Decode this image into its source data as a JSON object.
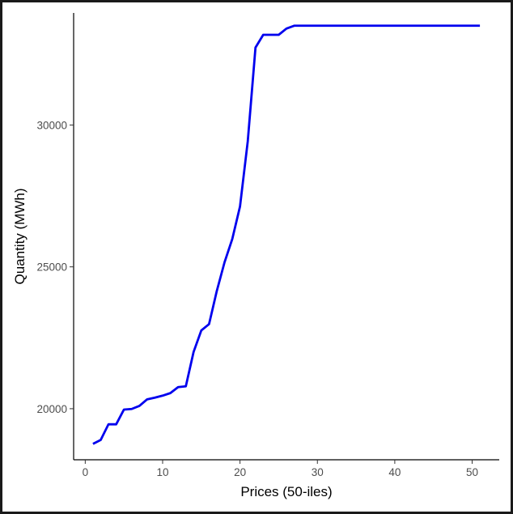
{
  "chart_data": {
    "type": "line",
    "title": "",
    "xlabel": "Prices (50-iles)",
    "ylabel": "Quantity (MWh)",
    "xlim": [
      -1.5,
      53.5
    ],
    "ylim": [
      18200,
      33950
    ],
    "x_ticks": [
      0,
      10,
      20,
      30,
      40,
      50
    ],
    "x_tick_labels": [
      "0",
      "10",
      "20",
      "30",
      "40",
      "50"
    ],
    "y_ticks": [
      20000,
      25000,
      30000
    ],
    "y_tick_labels": [
      "20000",
      "25000",
      "30000"
    ],
    "grid": false,
    "legend": "none",
    "series": [
      {
        "color": "#0000ee",
        "x": [
          1,
          2,
          3,
          4,
          5,
          6,
          7,
          8,
          9,
          10,
          11,
          12,
          13,
          14,
          15,
          16,
          17,
          18,
          19,
          20,
          21,
          22,
          23,
          24,
          25,
          26,
          27,
          28,
          29,
          30,
          31,
          32,
          33,
          34,
          35,
          36,
          37,
          38,
          39,
          40,
          41,
          42,
          43,
          44,
          45,
          46,
          47,
          48,
          49,
          50,
          51
        ],
        "values": [
          18760,
          18900,
          19450,
          19450,
          19970,
          19990,
          20100,
          20330,
          20390,
          20460,
          20550,
          20760,
          20790,
          22000,
          22760,
          22980,
          24150,
          25160,
          25980,
          27130,
          29420,
          32730,
          33180,
          33180,
          33180,
          33400,
          33500,
          33500,
          33500,
          33500,
          33500,
          33500,
          33500,
          33500,
          33500,
          33500,
          33500,
          33500,
          33500,
          33500,
          33500,
          33500,
          33500,
          33500,
          33500,
          33500,
          33500,
          33500,
          33500,
          33500,
          33500
        ]
      }
    ]
  }
}
